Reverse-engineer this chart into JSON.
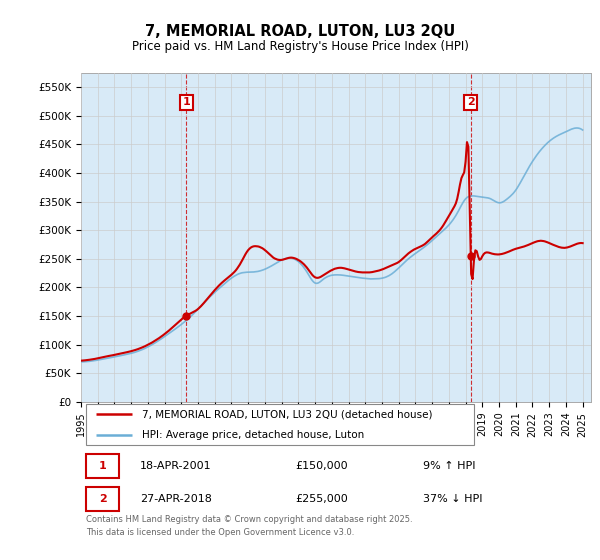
{
  "title": "7, MEMORIAL ROAD, LUTON, LU3 2QU",
  "subtitle": "Price paid vs. HM Land Registry's House Price Index (HPI)",
  "ylim": [
    0,
    575000
  ],
  "yticks": [
    0,
    50000,
    100000,
    150000,
    200000,
    250000,
    300000,
    350000,
    400000,
    450000,
    500000,
    550000
  ],
  "ytick_labels": [
    "£0",
    "£50K",
    "£100K",
    "£150K",
    "£200K",
    "£250K",
    "£300K",
    "£350K",
    "£400K",
    "£450K",
    "£500K",
    "£550K"
  ],
  "hpi_color": "#6baed6",
  "hpi_fill_color": "#d8eaf7",
  "price_color": "#cc0000",
  "background_color": "#ffffff",
  "grid_color": "#cccccc",
  "legend_label_price": "7, MEMORIAL ROAD, LUTON, LU3 2QU (detached house)",
  "legend_label_hpi": "HPI: Average price, detached house, Luton",
  "annotation1_label": "1",
  "annotation1_date": "18-APR-2001",
  "annotation1_price": "£150,000",
  "annotation1_pct": "9% ↑ HPI",
  "annotation2_label": "2",
  "annotation2_date": "27-APR-2018",
  "annotation2_price": "£255,000",
  "annotation2_pct": "37% ↓ HPI",
  "footer": "Contains HM Land Registry data © Crown copyright and database right 2025.\nThis data is licensed under the Open Government Licence v3.0.",
  "ann1_x": 2001.3,
  "ann1_y": 150000,
  "ann2_x": 2018.3,
  "ann2_y": 255000,
  "xlim_left": 1995.0,
  "xlim_right": 2025.5
}
